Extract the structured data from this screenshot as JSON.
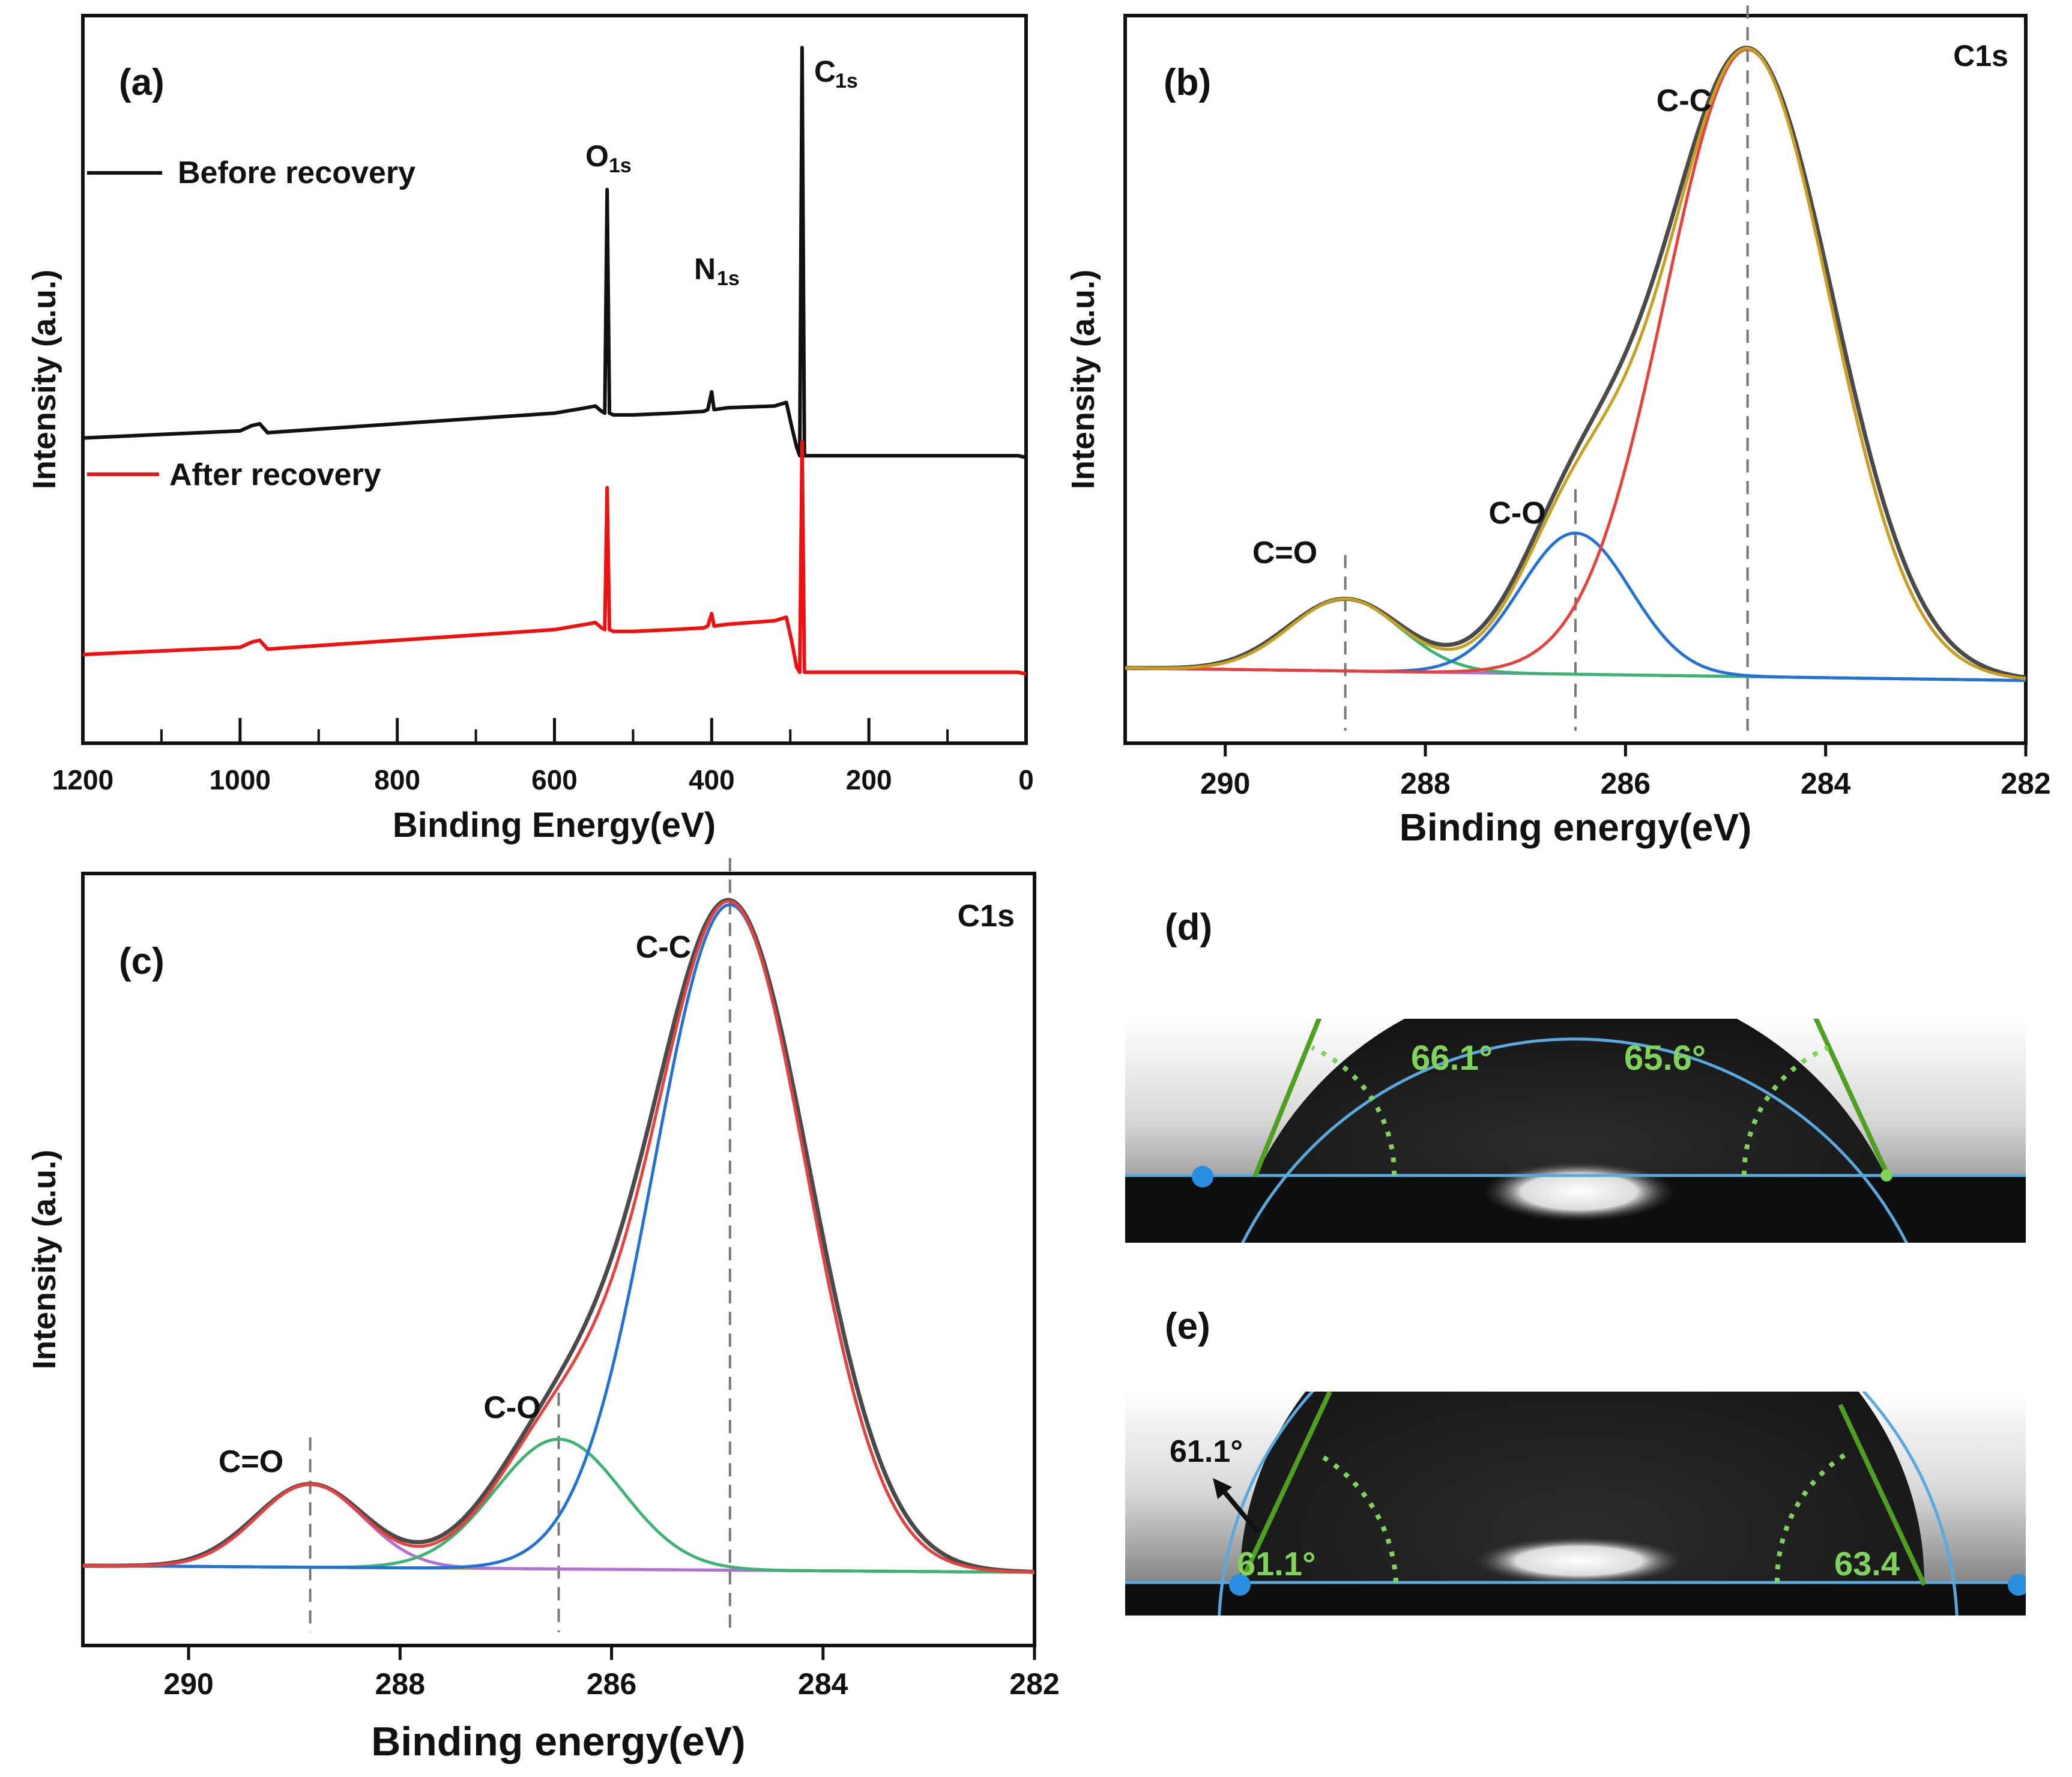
{
  "chart_data": [
    {
      "id": "a",
      "type": "line",
      "panel_label": "(a)",
      "xlabel": "Binding Energy(eV)",
      "ylabel": "Intensity (a.u.)",
      "xlim": [
        1200,
        0
      ],
      "xticks": [
        1200,
        1000,
        800,
        600,
        400,
        200,
        0
      ],
      "series": [
        {
          "name": "Before recovery",
          "color": "#111111",
          "points": [
            [
              1200,
              1.42
            ],
            [
              1100,
              1.44
            ],
            [
              1000,
              1.46
            ],
            [
              985,
              1.49
            ],
            [
              975,
              1.5
            ],
            [
              965,
              1.45
            ],
            [
              900,
              1.47
            ],
            [
              800,
              1.5
            ],
            [
              700,
              1.53
            ],
            [
              600,
              1.56
            ],
            [
              560,
              1.59
            ],
            [
              548,
              1.6
            ],
            [
              540,
              1.57
            ],
            [
              536,
              1.56
            ],
            [
              533,
              2.82
            ],
            [
              530,
              1.56
            ],
            [
              525,
              1.55
            ],
            [
              500,
              1.55
            ],
            [
              450,
              1.56
            ],
            [
              410,
              1.57
            ],
            [
              405,
              1.58
            ],
            [
              400,
              1.68
            ],
            [
              397,
              1.58
            ],
            [
              380,
              1.59
            ],
            [
              320,
              1.6
            ],
            [
              305,
              1.62
            ],
            [
              298,
              1.48
            ],
            [
              292,
              1.37
            ],
            [
              288,
              1.32
            ],
            [
              285,
              3.62
            ],
            [
              282,
              1.32
            ],
            [
              278,
              1.32
            ],
            [
              200,
              1.32
            ],
            [
              100,
              1.32
            ],
            [
              10,
              1.32
            ],
            [
              0,
              1.31
            ]
          ]
        },
        {
          "name": "After recovery",
          "color": "#ee1111",
          "points": [
            [
              1200,
              0.2
            ],
            [
              1100,
              0.22
            ],
            [
              1000,
              0.24
            ],
            [
              985,
              0.27
            ],
            [
              975,
              0.28
            ],
            [
              965,
              0.23
            ],
            [
              900,
              0.25
            ],
            [
              800,
              0.28
            ],
            [
              700,
              0.31
            ],
            [
              600,
              0.34
            ],
            [
              560,
              0.37
            ],
            [
              548,
              0.38
            ],
            [
              540,
              0.35
            ],
            [
              536,
              0.34
            ],
            [
              533,
              1.14
            ],
            [
              530,
              0.34
            ],
            [
              525,
              0.33
            ],
            [
              500,
              0.33
            ],
            [
              450,
              0.34
            ],
            [
              410,
              0.35
            ],
            [
              405,
              0.36
            ],
            [
              400,
              0.43
            ],
            [
              397,
              0.36
            ],
            [
              380,
              0.37
            ],
            [
              320,
              0.39
            ],
            [
              305,
              0.41
            ],
            [
              298,
              0.27
            ],
            [
              292,
              0.13
            ],
            [
              288,
              0.1
            ],
            [
              285,
              1.4
            ],
            [
              282,
              0.1
            ],
            [
              278,
              0.1
            ],
            [
              200,
              0.1
            ],
            [
              100,
              0.1
            ],
            [
              10,
              0.1
            ],
            [
              0,
              0.09
            ]
          ]
        }
      ],
      "legend": [
        {
          "label": "Before recovery",
          "color": "#111111"
        },
        {
          "label": "After recovery",
          "color": "#ee1111"
        }
      ],
      "annotations": [
        {
          "main": "C",
          "sub": "1s",
          "x": 285,
          "y": 3.62
        },
        {
          "main": "O",
          "sub": "1s",
          "x": 533,
          "y": 2.82
        },
        {
          "main": "N",
          "sub": "1s",
          "x": 400,
          "y": 1.68
        }
      ],
      "ylim": [
        -0.3,
        3.8
      ]
    },
    {
      "id": "b",
      "type": "line",
      "panel_label": "(b)",
      "title": "C1s",
      "xlabel": "Binding energy(eV)",
      "ylabel": "Intensity (a.u.)",
      "xlim": [
        291,
        282
      ],
      "xticks": [
        290,
        288,
        286,
        284,
        282
      ],
      "ylim": [
        -0.12,
        1.04
      ],
      "background": [
        [
          291,
          0.0
        ],
        [
          282,
          -0.02
        ]
      ],
      "peaks": [
        {
          "name": "C=O",
          "center": 288.8,
          "height": 0.115,
          "sigma": 0.55,
          "color": "#3cb371"
        },
        {
          "name": "C-O",
          "center": 286.5,
          "height": 0.225,
          "sigma": 0.55,
          "color": "#2271d6"
        },
        {
          "name": "C-C",
          "center": 284.78,
          "height": 1.0,
          "sigma": 0.82,
          "color": "#e8413c"
        }
      ],
      "envelope_colors": {
        "raw": "#4a4a4a",
        "fit": "#c8a020"
      },
      "background_color": "#b070d8",
      "peak_labels": [
        "C=O",
        "C-O",
        "C-C"
      ],
      "dashed_lines_at": [
        288.8,
        286.5,
        284.78
      ]
    },
    {
      "id": "c",
      "type": "line",
      "panel_label": "(c)",
      "title": "C1s",
      "xlabel": "Binding energy(eV)",
      "ylabel": "Intensity (a.u.)",
      "xlim": [
        291,
        282
      ],
      "xticks": [
        290,
        288,
        286,
        284,
        282
      ],
      "ylim": [
        -0.12,
        1.04
      ],
      "background": [
        [
          291,
          0.0
        ],
        [
          282,
          -0.01
        ]
      ],
      "peaks": [
        {
          "name": "C=O",
          "center": 288.85,
          "height": 0.125,
          "sigma": 0.5,
          "color": "#b070d8"
        },
        {
          "name": "C-O",
          "center": 286.5,
          "height": 0.195,
          "sigma": 0.6,
          "color": "#3cb371"
        },
        {
          "name": "C-C",
          "center": 284.88,
          "height": 1.0,
          "sigma": 0.72,
          "color": "#2271d6"
        }
      ],
      "envelope_colors": {
        "raw": "#4a4a4a",
        "fit": "#e8413c"
      },
      "background_color": "#c8a020",
      "peak_labels": [
        "C=O",
        "C-O",
        "C-C"
      ],
      "dashed_lines_at": [
        288.85,
        286.5,
        284.88
      ]
    }
  ],
  "photos": [
    {
      "id": "d",
      "panel_label": "(d)",
      "left_angle": "66.1°",
      "right_angle": "65.6°"
    },
    {
      "id": "e",
      "panel_label": "(e)",
      "left_angle": "61.1°",
      "right_angle": "63.4",
      "callout": "61.1°"
    }
  ]
}
